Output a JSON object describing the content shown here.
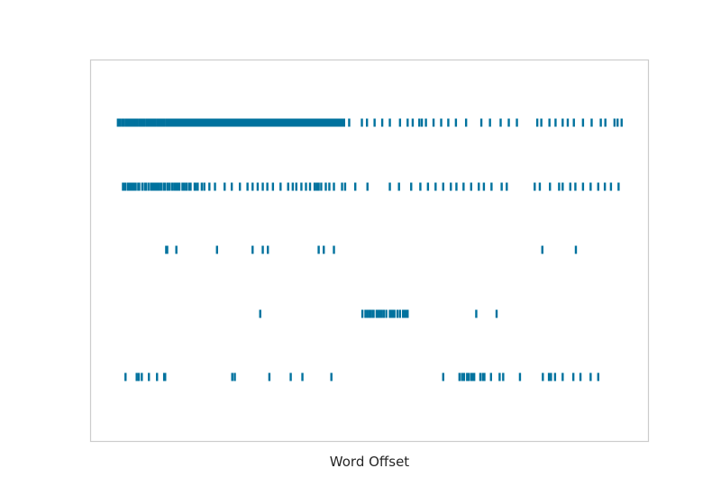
{
  "chart_data": {
    "type": "scatter",
    "xlabel": "Word Offset",
    "ylabel": "",
    "title": "",
    "grid": false,
    "legend": "none",
    "color": "#1f77b4",
    "mark_color": "#00729e",
    "xlim": [
      0,
      1000
    ],
    "rows": [
      {
        "offsets": [
          5,
          7,
          9,
          13,
          15,
          17,
          21,
          24,
          26,
          28,
          30,
          34,
          36,
          38,
          40,
          41,
          43,
          47,
          50,
          52,
          55,
          57,
          61,
          63,
          66,
          69,
          71,
          74,
          76,
          78,
          82,
          84,
          86,
          88,
          91,
          93,
          95,
          97,
          101,
          103,
          105,
          107,
          109,
          112,
          114,
          116,
          118,
          120,
          122,
          124,
          126,
          128,
          130,
          132,
          134,
          136,
          138,
          140,
          142,
          144,
          146,
          148,
          150,
          152,
          154,
          156,
          158,
          160,
          162,
          164,
          166,
          168,
          170,
          172,
          174,
          176,
          178,
          180,
          182,
          184,
          186,
          188,
          190,
          192,
          194,
          196,
          198,
          200,
          202,
          204,
          206,
          208,
          210,
          212,
          214,
          216,
          218,
          220,
          222,
          224,
          226,
          228,
          230,
          232,
          234,
          236,
          238,
          240,
          242,
          244,
          246,
          248,
          250,
          252,
          254,
          256,
          258,
          260,
          262,
          264,
          266,
          268,
          270,
          272,
          274,
          276,
          278,
          280,
          282,
          284,
          286,
          288,
          290,
          292,
          294,
          296,
          298,
          300,
          302,
          304,
          306,
          308,
          310,
          312,
          314,
          316,
          318,
          320,
          322,
          324,
          326,
          328,
          330,
          332,
          334,
          336,
          338,
          340,
          342,
          344,
          346,
          348,
          350,
          352,
          354,
          356,
          358,
          360,
          362,
          364,
          366,
          368,
          370,
          372,
          374,
          376,
          378,
          380,
          382,
          384,
          386,
          388,
          390,
          392,
          394,
          396,
          398,
          400,
          402,
          404,
          406,
          408,
          410,
          412,
          414,
          416,
          418,
          420,
          422,
          424,
          426,
          428,
          430,
          432,
          434,
          436,
          438,
          440,
          442,
          444,
          446,
          448,
          450,
          460,
          485,
          495,
          510,
          525,
          540,
          560,
          575,
          585,
          598,
          603,
          611,
          626,
          641,
          655,
          670,
          690,
          720,
          737,
          758,
          774,
          790,
          830,
          838,
          854,
          866,
          880,
          890,
          902,
          920,
          937,
          955,
          964,
          982,
          988,
          996
        ]
      },
      {
        "offsets": [
          15,
          18,
          20,
          25,
          28,
          31,
          33,
          35,
          38,
          40,
          45,
          47,
          53,
          58,
          60,
          65,
          70,
          73,
          76,
          80,
          83,
          86,
          90,
          95,
          98,
          103,
          107,
          112,
          116,
          119,
          122,
          126,
          132,
          136,
          140,
          145,
          148,
          156,
          158,
          162,
          170,
          175,
          185,
          196,
          215,
          229,
          245,
          260,
          270,
          280,
          290,
          299,
          310,
          325,
          340,
          349,
          356,
          366,
          375,
          383,
          392,
          396,
          400,
          405,
          414,
          421,
          430,
          446,
          452,
          472,
          496,
          540,
          558,
          582,
          600,
          615,
          630,
          645,
          660,
          671,
          685,
          700,
          715,
          725,
          740,
          760,
          770,
          825,
          835,
          855,
          873,
          880,
          895,
          905,
          920,
          935,
          950,
          963,
          975,
          990
        ]
      },
      {
        "offsets": [
          100,
          102,
          120,
          200,
          270,
          290,
          300,
          400,
          410,
          430,
          840,
          906
        ]
      },
      {
        "offsets": [
          285,
          486,
          492,
          496,
          500,
          502,
          506,
          508,
          514,
          518,
          521,
          524,
          528,
          533,
          540,
          543,
          546,
          549,
          555,
          560,
          566,
          568,
          572,
          575,
          710,
          750
        ]
      },
      {
        "offsets": [
          20,
          42,
          46,
          52,
          66,
          82,
          96,
          98,
          230,
          235,
          303,
          345,
          368,
          425,
          645,
          677,
          682,
          686,
          692,
          695,
          700,
          703,
          706,
          718,
          723,
          726,
          739,
          756,
          763,
          796,
          841,
          853,
          857,
          865,
          880,
          901,
          915,
          935,
          950
        ]
      }
    ]
  }
}
